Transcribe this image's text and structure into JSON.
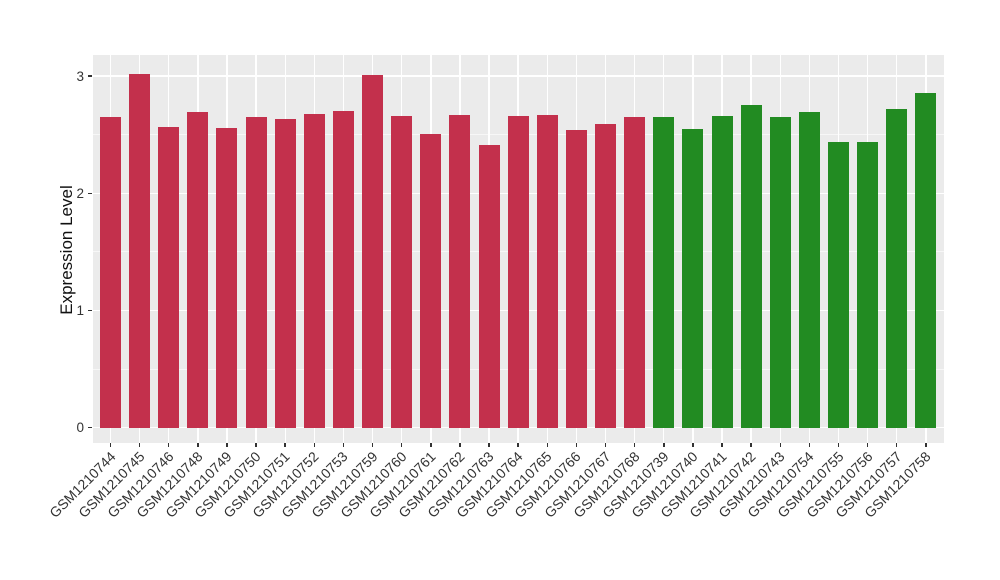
{
  "chart_data": {
    "type": "bar",
    "title": "",
    "xlabel": "",
    "ylabel": "Expression Level",
    "ylim": [
      0,
      3.18
    ],
    "yticks": [
      0,
      1,
      2,
      3
    ],
    "ytick_labels": [
      "0",
      "1",
      "2",
      "3"
    ],
    "minor_yticks": [
      0.5,
      1.5,
      2.5
    ],
    "grid": "white major and minor gridlines on gray panel",
    "legend_position": "none",
    "x_label_rotation_deg": 45,
    "categories": [
      "GSM1210744",
      "GSM1210745",
      "GSM1210746",
      "GSM1210748",
      "GSM1210749",
      "GSM1210750",
      "GSM1210751",
      "GSM1210752",
      "GSM1210753",
      "GSM1210759",
      "GSM1210760",
      "GSM1210761",
      "GSM1210762",
      "GSM1210763",
      "GSM1210764",
      "GSM1210765",
      "GSM1210766",
      "GSM1210767",
      "GSM1210768",
      "GSM1210739",
      "GSM1210740",
      "GSM1210741",
      "GSM1210742",
      "GSM1210743",
      "GSM1210754",
      "GSM1210755",
      "GSM1210756",
      "GSM1210757",
      "GSM1210758"
    ],
    "values": [
      2.65,
      3.02,
      2.57,
      2.69,
      2.56,
      2.65,
      2.63,
      2.68,
      2.7,
      3.01,
      2.66,
      2.51,
      2.67,
      2.41,
      2.66,
      2.67,
      2.54,
      2.59,
      2.65,
      2.65,
      2.55,
      2.66,
      2.75,
      2.65,
      2.69,
      2.44,
      2.44,
      2.72,
      2.86
    ],
    "bar_groups": [
      "red",
      "red",
      "red",
      "red",
      "red",
      "red",
      "red",
      "red",
      "red",
      "red",
      "red",
      "red",
      "red",
      "red",
      "red",
      "red",
      "red",
      "red",
      "red",
      "green",
      "green",
      "green",
      "green",
      "green",
      "green",
      "green",
      "green",
      "green",
      "green"
    ],
    "colors": {
      "red": "#C3304C",
      "green": "#228B22"
    }
  },
  "style": {
    "panel_background": "#EBEBEB",
    "gridline_color": "#FFFFFF",
    "axis_text_color": "#333333",
    "figure_background": "#FFFFFF"
  }
}
